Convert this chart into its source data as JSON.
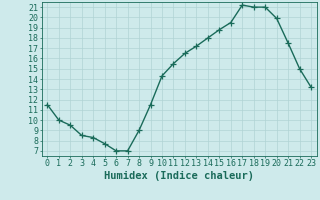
{
  "title": "",
  "xlabel": "Humidex (Indice chaleur)",
  "ylabel": "",
  "x_values": [
    0,
    1,
    2,
    3,
    4,
    5,
    6,
    7,
    8,
    9,
    10,
    11,
    12,
    13,
    14,
    15,
    16,
    17,
    18,
    19,
    20,
    21,
    22,
    23
  ],
  "y_values": [
    11.5,
    10.0,
    9.5,
    8.5,
    8.3,
    7.7,
    7.0,
    7.0,
    9.0,
    11.5,
    14.3,
    15.5,
    16.5,
    17.2,
    18.0,
    18.8,
    19.5,
    21.2,
    21.0,
    21.0,
    19.9,
    17.5,
    15.0,
    13.2
  ],
  "line_color": "#1a6b5a",
  "marker": "+",
  "marker_size": 4,
  "bg_color": "#ceeaeb",
  "grid_color": "#b0d4d5",
  "tick_label_color": "#1a6b5a",
  "axis_label_color": "#1a6b5a",
  "xlim": [
    -0.5,
    23.5
  ],
  "ylim": [
    6.5,
    21.5
  ],
  "yticks": [
    7,
    8,
    9,
    10,
    11,
    12,
    13,
    14,
    15,
    16,
    17,
    18,
    19,
    20,
    21
  ],
  "xticks": [
    0,
    1,
    2,
    3,
    4,
    5,
    6,
    7,
    8,
    9,
    10,
    11,
    12,
    13,
    14,
    15,
    16,
    17,
    18,
    19,
    20,
    21,
    22,
    23
  ],
  "font_size": 6.0,
  "xlabel_fontsize": 7.5,
  "linewidth": 1.0,
  "marker_edge_width": 0.9
}
